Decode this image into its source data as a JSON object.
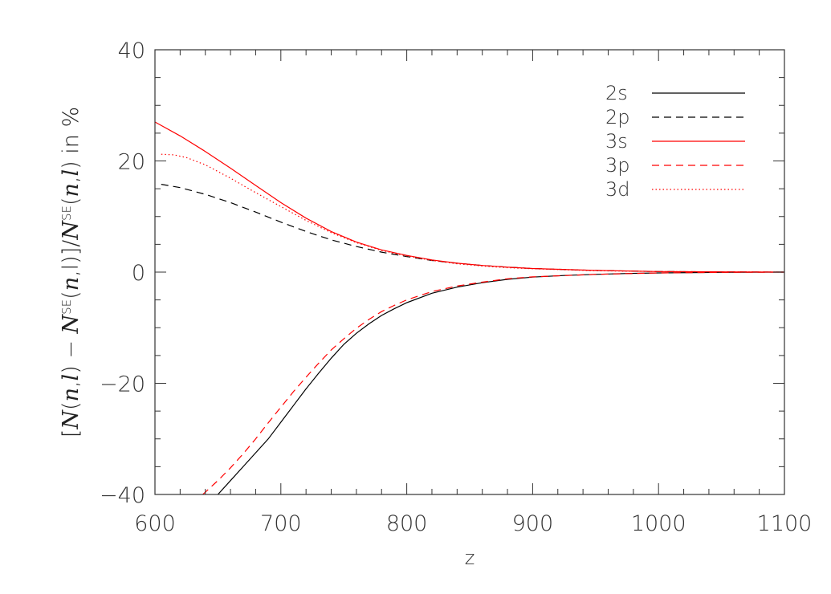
{
  "chart_data": {
    "type": "line",
    "title": "",
    "xlabel": "z",
    "ylabel": {
      "parts": [
        "[",
        "N",
        "(",
        "n",
        ",",
        "l",
        ") − ",
        "N",
        "SE",
        "(",
        "n",
        ",",
        "l",
        ")]/",
        "N",
        "SE",
        "(",
        "n",
        ",",
        "l",
        ")",
        " in %"
      ]
    },
    "xlim": [
      600,
      1100
    ],
    "ylim": [
      -40,
      40
    ],
    "xticks": [
      600,
      700,
      800,
      900,
      1000,
      1100
    ],
    "yticks": [
      -40,
      -20,
      0,
      20,
      40
    ],
    "xtick_labels": [
      "600",
      "700",
      "800",
      "900",
      "1000",
      "1100"
    ],
    "ytick_labels": [
      "−40",
      "−20",
      "0",
      "20",
      "40"
    ],
    "grid": false,
    "legend_position": "top-right",
    "series": [
      {
        "name": "2s",
        "color": "#000000",
        "dash": "solid",
        "x": [
          650,
          660,
          670,
          680,
          690,
          700,
          710,
          720,
          730,
          740,
          750,
          760,
          770,
          780,
          790,
          800,
          820,
          840,
          860,
          880,
          900,
          925,
          950,
          975,
          1000,
          1050,
          1100
        ],
        "y": [
          -40.0,
          -37.5,
          -35.0,
          -32.5,
          -30.0,
          -27.0,
          -24.0,
          -21.0,
          -18.2,
          -15.5,
          -13.0,
          -11.0,
          -9.3,
          -7.8,
          -6.6,
          -5.5,
          -3.8,
          -2.7,
          -1.9,
          -1.3,
          -0.9,
          -0.6,
          -0.4,
          -0.25,
          -0.15,
          -0.05,
          0.0
        ]
      },
      {
        "name": "2p",
        "color": "#000000",
        "dash": "dashed",
        "x": [
          605,
          620,
          640,
          660,
          680,
          700,
          720,
          740,
          760,
          780,
          800,
          820,
          840,
          860,
          880,
          900,
          950,
          1000,
          1050,
          1100
        ],
        "y": [
          15.8,
          15.2,
          14.0,
          12.5,
          10.8,
          9.0,
          7.3,
          5.8,
          4.6,
          3.6,
          2.8,
          2.1,
          1.6,
          1.2,
          0.9,
          0.65,
          0.3,
          0.1,
          0.05,
          0.0
        ]
      },
      {
        "name": "3s",
        "color": "#ff0000",
        "dash": "solid",
        "x": [
          600,
          620,
          640,
          660,
          680,
          700,
          720,
          740,
          760,
          780,
          800,
          820,
          840,
          860,
          880,
          900,
          950,
          1000,
          1050,
          1100
        ],
        "y": [
          27.0,
          24.5,
          21.7,
          18.7,
          15.6,
          12.5,
          9.7,
          7.3,
          5.4,
          4.0,
          3.0,
          2.2,
          1.6,
          1.2,
          0.9,
          0.65,
          0.3,
          0.1,
          0.05,
          0.0
        ]
      },
      {
        "name": "3p",
        "color": "#ff0000",
        "dash": "dashed",
        "x": [
          638,
          650,
          660,
          670,
          680,
          690,
          700,
          710,
          720,
          730,
          740,
          750,
          760,
          770,
          780,
          790,
          800,
          820,
          840,
          860,
          880,
          900,
          950,
          1000,
          1050,
          1100
        ],
        "y": [
          -40.0,
          -37.5,
          -35.2,
          -32.7,
          -30.0,
          -27.1,
          -24.3,
          -21.5,
          -18.9,
          -16.4,
          -14.0,
          -12.0,
          -10.1,
          -8.5,
          -7.1,
          -6.0,
          -5.0,
          -3.5,
          -2.5,
          -1.8,
          -1.2,
          -0.85,
          -0.4,
          -0.15,
          -0.05,
          0.0
        ]
      },
      {
        "name": "3d",
        "color": "#ff0000",
        "dash": "dotted",
        "x": [
          605,
          615,
          625,
          640,
          660,
          680,
          700,
          720,
          740,
          760,
          780,
          800,
          820,
          840,
          860,
          880,
          900,
          950,
          1000,
          1050,
          1100
        ],
        "y": [
          21.2,
          21.1,
          20.6,
          19.3,
          16.9,
          14.3,
          11.8,
          9.3,
          7.1,
          5.3,
          3.9,
          2.9,
          2.1,
          1.5,
          1.1,
          0.8,
          0.6,
          0.25,
          0.1,
          0.04,
          0.0
        ]
      }
    ]
  }
}
